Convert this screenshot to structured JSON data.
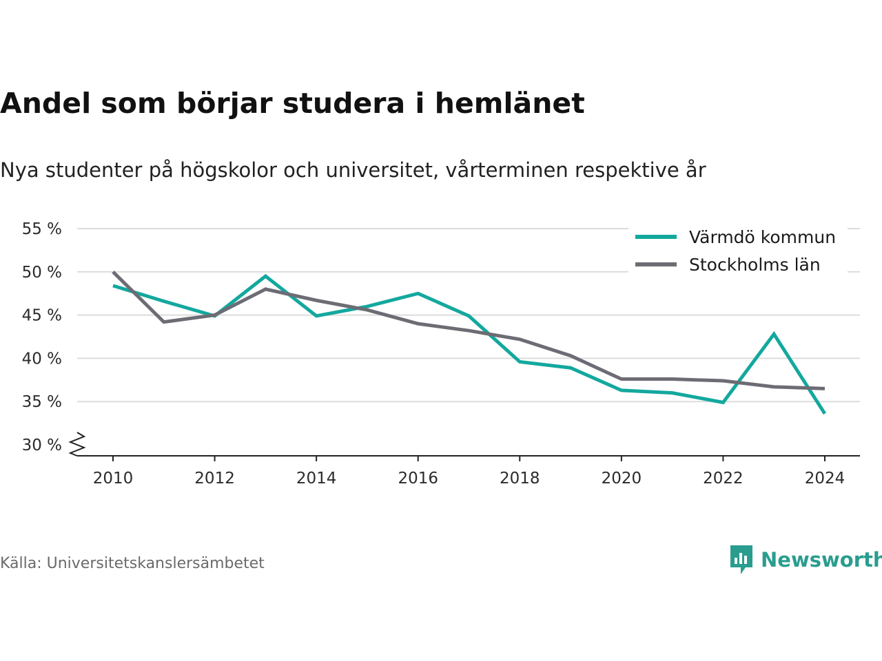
{
  "chart_data": {
    "type": "line",
    "title": "Andel som börjar studera i hemlänet",
    "subtitle": "Nya studenter på högskolor och universitet, vårterminen respektive år",
    "x": [
      2010,
      2011,
      2012,
      2013,
      2014,
      2015,
      2016,
      2017,
      2018,
      2019,
      2020,
      2021,
      2022,
      2023,
      2024
    ],
    "series": [
      {
        "name": "Värmdö kommun",
        "color": "#13a89e",
        "values": [
          48.4,
          46.6,
          44.9,
          49.5,
          44.9,
          46.0,
          47.5,
          44.9,
          39.6,
          38.9,
          36.3,
          36.0,
          34.9,
          42.8,
          33.6
        ]
      },
      {
        "name": "Stockholms län",
        "color": "#6d6c74",
        "values": [
          50.0,
          44.2,
          45.0,
          48.0,
          46.7,
          45.6,
          44.0,
          43.2,
          42.2,
          40.3,
          37.6,
          37.6,
          37.4,
          36.7,
          36.5
        ]
      }
    ],
    "xticks": [
      2010,
      2012,
      2014,
      2016,
      2018,
      2020,
      2022,
      2024
    ],
    "xtick_labels": [
      "2010",
      "2012",
      "2014",
      "2016",
      "2018",
      "2020",
      "2022",
      "2024"
    ],
    "yticks": [
      30,
      35,
      40,
      45,
      50,
      55
    ],
    "ytick_labels": [
      "30 %",
      "35 %",
      "40 %",
      "45 %",
      "50 %",
      "55 %"
    ],
    "ylim": [
      30,
      55
    ],
    "xlim": [
      2010,
      2024
    ],
    "y_axis_break": true,
    "grid": "horizontal",
    "legend_position": "top-right"
  },
  "footer": {
    "source": "Källa: Universitetskanslersämbetet",
    "brand": "Newsworthy",
    "brand_color": "#2a9d8f",
    "brand_icon": "bar-chart-speech-bubble-icon"
  }
}
